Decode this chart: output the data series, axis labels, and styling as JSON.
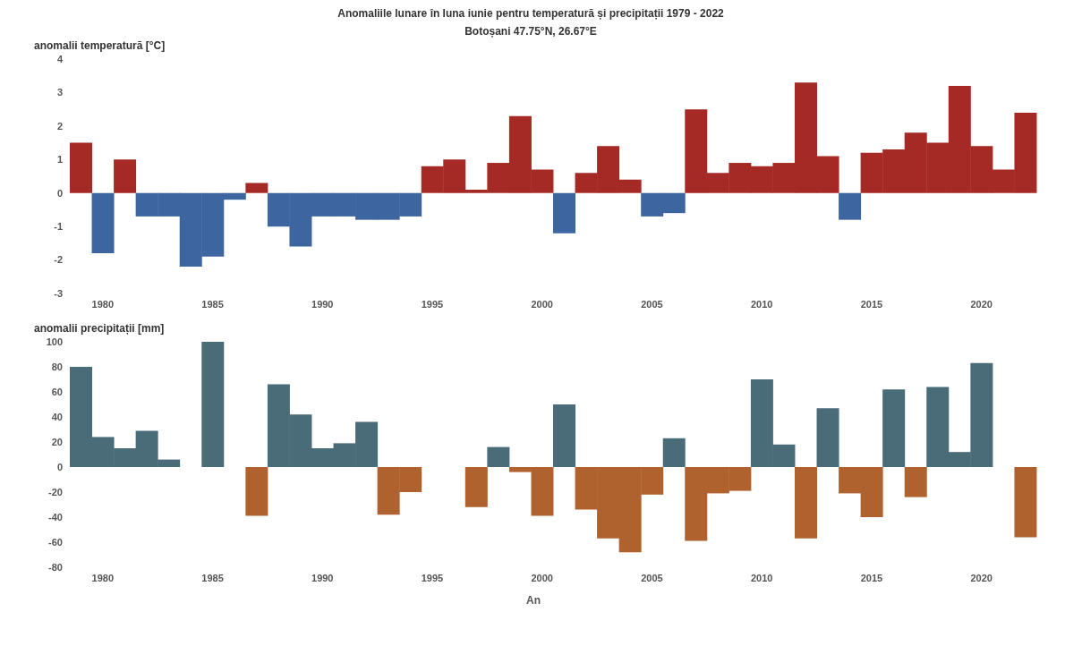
{
  "chart_data": [
    {
      "type": "bar",
      "title": "Anomaliile lunare în luna iunie pentru temperatură și precipitații 1979 - 2022",
      "subtitle": "Botoșani 47.75°N, 26.67°E",
      "ylabel": "anomalii temperatură [°C]",
      "categories": [
        null,
        "1980",
        null,
        null,
        null,
        null,
        "1985",
        null,
        null,
        null,
        null,
        "1990",
        null,
        null,
        null,
        null,
        "1995",
        null,
        null,
        null,
        null,
        "2000",
        null,
        null,
        null,
        null,
        "2005",
        null,
        null,
        null,
        null,
        "2010",
        null,
        null,
        null,
        null,
        "2015",
        null,
        null,
        null,
        null,
        "2020",
        null,
        null
      ],
      "values": [
        1.5,
        -1.8,
        1.0,
        -0.7,
        -0.7,
        -2.2,
        -1.9,
        -0.2,
        0.3,
        -1.0,
        -1.6,
        -0.7,
        -0.7,
        -0.8,
        -0.8,
        -0.7,
        0.8,
        1.0,
        0.1,
        0.9,
        2.3,
        0.7,
        -1.2,
        0.6,
        1.4,
        0.4,
        -0.7,
        -0.6,
        2.5,
        0.6,
        0.9,
        0.8,
        0.9,
        3.3,
        1.1,
        -0.8,
        1.2,
        1.3,
        1.8,
        1.5,
        3.2,
        1.4,
        0.7,
        2.4
      ],
      "colors": [
        "#a52a25",
        "#3d65a0",
        "#a52a25",
        "#3d65a0",
        "#3d65a0",
        "#3d65a0",
        "#3d65a0",
        "#3d65a0",
        "#a52a25",
        "#3d65a0",
        "#3d65a0",
        "#3d65a0",
        "#3d65a0",
        "#3d65a0",
        "#3d65a0",
        "#3d65a0",
        "#a52a25",
        "#a52a25",
        "#a52a25",
        "#a52a25",
        "#a52a25",
        "#a52a25",
        "#3d65a0",
        "#a52a25",
        "#a52a25",
        "#a52a25",
        "#3d65a0",
        "#3d65a0",
        "#a52a25",
        "#a52a25",
        "#a52a25",
        "#a52a25",
        "#a52a25",
        "#a52a25",
        "#a52a25",
        "#3d65a0",
        "#a52a25",
        "#a52a25",
        "#a52a25",
        "#a52a25",
        "#a52a25",
        "#a52a25",
        "#a52a25",
        "#a52a25"
      ],
      "ylim": [
        -3,
        4
      ],
      "yticks": [
        -3,
        -2,
        -1,
        0,
        1,
        2,
        3,
        4
      ],
      "grid": false,
      "legend": false
    },
    {
      "type": "bar",
      "ylabel": "anomalii precipitații [mm]",
      "xlabel": "An",
      "categories": [
        null,
        "1980",
        null,
        null,
        null,
        null,
        "1985",
        null,
        null,
        null,
        null,
        "1990",
        null,
        null,
        null,
        null,
        "1995",
        null,
        null,
        null,
        null,
        "2000",
        null,
        null,
        null,
        null,
        "2005",
        null,
        null,
        null,
        null,
        "2010",
        null,
        null,
        null,
        null,
        "2015",
        null,
        null,
        null,
        null,
        "2020",
        null,
        null
      ],
      "values": [
        80,
        24,
        15,
        29,
        6,
        0,
        100,
        0,
        -39,
        66,
        42,
        15,
        19,
        36,
        -38,
        -20,
        0,
        0,
        -32,
        16,
        -4,
        -39,
        50,
        -34,
        -57,
        -68,
        -22,
        23,
        -59,
        -21,
        -19,
        70,
        18,
        -57,
        47,
        -21,
        -40,
        62,
        -24,
        64,
        12,
        83,
        0,
        -56
      ],
      "colors": [
        "#4a6b78",
        "#4a6b78",
        "#4a6b78",
        "#4a6b78",
        "#4a6b78",
        "#4a6b78",
        "#4a6b78",
        "#4a6b78",
        "#b0622e",
        "#4a6b78",
        "#4a6b78",
        "#4a6b78",
        "#4a6b78",
        "#4a6b78",
        "#b0622e",
        "#b0622e",
        "#4a6b78",
        "#4a6b78",
        "#b0622e",
        "#4a6b78",
        "#b0622e",
        "#b0622e",
        "#4a6b78",
        "#b0622e",
        "#b0622e",
        "#b0622e",
        "#b0622e",
        "#4a6b78",
        "#b0622e",
        "#b0622e",
        "#b0622e",
        "#4a6b78",
        "#4a6b78",
        "#b0622e",
        "#4a6b78",
        "#b0622e",
        "#b0622e",
        "#4a6b78",
        "#b0622e",
        "#4a6b78",
        "#4a6b78",
        "#4a6b78",
        "#4a6b78",
        "#b0622e"
      ],
      "ylim": [
        -80,
        100
      ],
      "yticks": [
        -80,
        -60,
        -40,
        -20,
        0,
        20,
        40,
        60,
        80,
        100
      ],
      "grid": false,
      "legend": false
    }
  ]
}
